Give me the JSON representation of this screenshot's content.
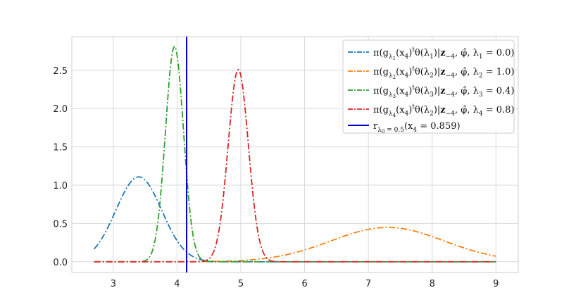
{
  "chart_data": {
    "type": "line",
    "xlim": [
      2.35,
      9.35
    ],
    "ylim": [
      -0.14,
      2.94
    ],
    "xticks": [
      3,
      4,
      5,
      6,
      7,
      8,
      9
    ],
    "yticks": [
      0.0,
      0.5,
      1.0,
      1.5,
      2.0,
      2.5
    ],
    "xtick_labels": [
      "3",
      "4",
      "5",
      "6",
      "7",
      "8",
      "9"
    ],
    "ytick_labels": [
      "0.0",
      "0.5",
      "1.0",
      "1.5",
      "2.0",
      "2.5"
    ],
    "grid": true,
    "legend_position": "top-right",
    "x_range": [
      2.7,
      9.0
    ],
    "series": [
      {
        "legend": {
          "pre": "π(g",
          "s1": "λ",
          "s2": "1",
          "m1": "(x",
          "m2": "4",
          "m3": ")",
          "sup": "t",
          "m4": "θ(λ",
          "m5": "1",
          "m6": ")|",
          "bold": "z",
          "m7": "−4",
          "m8": ", ",
          "phi": "φ̂",
          "m9": ", λ",
          "m10": "1",
          "post": " = 0.0)"
        },
        "color": "#1f77b4",
        "dash": "dashdot",
        "distribution": "normal",
        "mean": 3.4,
        "sd": 0.36
      },
      {
        "legend": {
          "pre": "π(g",
          "s1": "λ",
          "s2": "2",
          "m1": "(x",
          "m2": "4",
          "m3": ")",
          "sup": "t",
          "m4": "θ(λ",
          "m5": "2",
          "m6": ")|",
          "bold": "z",
          "m7": "−4",
          "m8": ", ",
          "phi": "φ̂",
          "m9": ", λ",
          "m10": "2",
          "post": " = 1.0)"
        },
        "color": "#ff7f0e",
        "dash": "dashdot",
        "distribution": "normal",
        "mean": 7.3,
        "sd": 0.89
      },
      {
        "legend": {
          "pre": "π(g",
          "s1": "λ",
          "s2": "3",
          "m1": "(x",
          "m2": "4",
          "m3": ")",
          "sup": "t",
          "m4": "θ(λ",
          "m5": "3",
          "m6": ")|",
          "bold": "z",
          "m7": "−4",
          "m8": ", ",
          "phi": "φ̂",
          "m9": ", λ",
          "m10": "3",
          "post": " = 0.4)"
        },
        "color": "#2ca02c",
        "dash": "dashdot",
        "distribution": "normal",
        "mean": 3.96,
        "sd": 0.142
      },
      {
        "legend": {
          "pre": "π(g",
          "s1": "λ",
          "s2": "4",
          "m1": "(x",
          "m2": "4",
          "m3": ")",
          "sup": "t",
          "m4": "θ(λ",
          "m5": "2",
          "m6": ")|",
          "bold": "z",
          "m7": "−4",
          "m8": ", ",
          "phi": "φ̂",
          "m9": ", λ",
          "m10": "4",
          "post": " = 0.8)"
        },
        "color": "#d62728",
        "dash": "dashdot",
        "distribution": "normal",
        "mean": 4.96,
        "sd": 0.159
      }
    ],
    "vline": {
      "x": 4.15,
      "color": "#0000cc",
      "legend": {
        "pre": "r",
        "s1": "λ",
        "s2": "0",
        "s3": " = 0.5",
        "post": "(x",
        "m2": "4",
        "tail": " = 0.859)"
      }
    }
  }
}
